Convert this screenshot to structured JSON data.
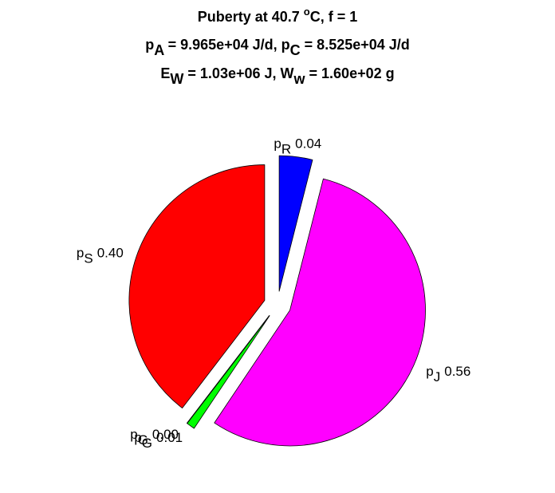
{
  "chart_data": {
    "type": "pie",
    "title_lines": [
      [
        {
          "text": "Puberty at 40.7 "
        },
        {
          "text": "o",
          "shift": "super"
        },
        {
          "text": "C, f = 1"
        }
      ],
      [
        {
          "text": "p"
        },
        {
          "text": "A",
          "shift": "sub"
        },
        {
          "text": " = 9.965e+04 J/d,  p"
        },
        {
          "text": "C",
          "shift": "sub"
        },
        {
          "text": " = 8.525e+04 J/d"
        }
      ],
      [
        {
          "text": "E"
        },
        {
          "text": "W",
          "shift": "sub"
        },
        {
          "text": " = 1.03e+06 J, W"
        },
        {
          "text": "w",
          "shift": "sub"
        },
        {
          "text": " = 1.60e+02 g"
        }
      ]
    ],
    "labels": [
      {
        "text": "p",
        "sub": "R"
      },
      {
        "text": "p",
        "sub": "J"
      },
      {
        "text": "p",
        "sub": "G"
      },
      {
        "text": "p",
        "sub": "G"
      },
      {
        "text": "p",
        "sub": "S"
      }
    ],
    "values": [
      0.04,
      0.56,
      0.01,
      0.0,
      0.4
    ],
    "value_labels": [
      "0.04",
      "0.56",
      "0.01",
      "0.00",
      "0.40"
    ],
    "colors": [
      "#0000ff",
      "#ff00ff",
      "#00ff00",
      "#008000",
      "#ff0000"
    ],
    "exploded": true
  }
}
